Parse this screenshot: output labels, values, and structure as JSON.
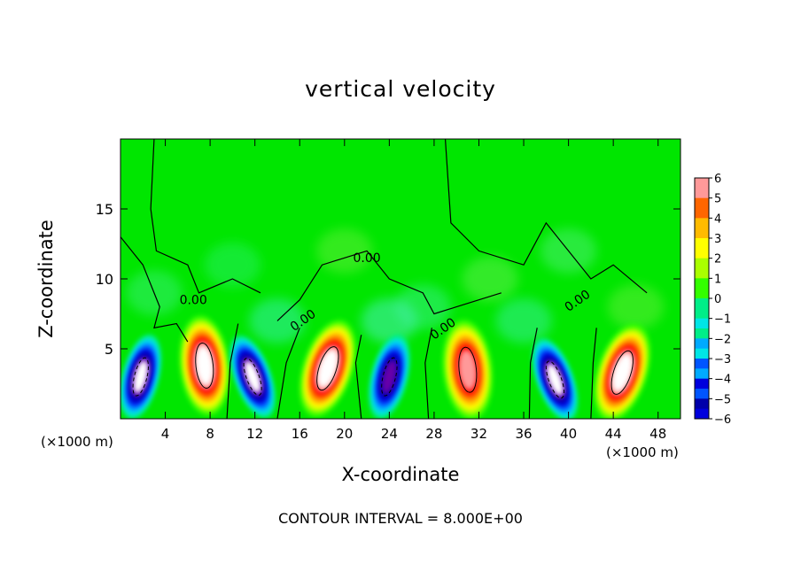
{
  "chart_data": {
    "type": "heatmap",
    "title": "vertical velocity",
    "xlabel": "X-coordinate",
    "ylabel": "Z-coordinate",
    "x_unit_label": "(×1000 m)",
    "x_range": [
      0,
      50
    ],
    "y_range": [
      0,
      20
    ],
    "x_ticks": [
      4,
      8,
      12,
      16,
      20,
      24,
      28,
      32,
      36,
      40,
      44,
      48
    ],
    "y_ticks": [
      5,
      10,
      15
    ],
    "colorbar": {
      "labels": [
        "6",
        "5",
        "4",
        "3",
        "2",
        "1",
        "0",
        "−1",
        "−2",
        "−3",
        "−4",
        "−5",
        "−6"
      ],
      "values": [
        6,
        5,
        4,
        3,
        2,
        1,
        0,
        -1,
        -2,
        -3,
        -4,
        -5,
        -6
      ]
    },
    "contour_labels": [
      "0.00",
      "0.00",
      "0.00",
      "0.00",
      "0.00"
    ],
    "footer": "CONTOUR INTERVAL = 8.000E+00",
    "colors": {
      "background": "#00e600",
      "neutral": "#00ff00",
      "positive": [
        "#33ff00",
        "#aaff00",
        "#ffff00",
        "#ffbb00",
        "#ff6600",
        "#ff0000",
        "#ff9999",
        "#ffffff"
      ],
      "negative": [
        "#00ee88",
        "#00e6e6",
        "#00aaff",
        "#0055ff",
        "#0000dd",
        "#0000aa",
        "#6600aa",
        "#ffffff"
      ]
    },
    "features": [
      {
        "kind": "updraft",
        "x": 7.5,
        "z": 3.8,
        "peak": 6
      },
      {
        "kind": "updraft",
        "x": 18.5,
        "z": 3.6,
        "peak": 6
      },
      {
        "kind": "updraft",
        "x": 31.0,
        "z": 3.5,
        "peak": 5
      },
      {
        "kind": "updraft",
        "x": 44.8,
        "z": 3.3,
        "peak": 6
      },
      {
        "kind": "downdraft",
        "x": 1.8,
        "z": 3.0,
        "peak": -6
      },
      {
        "kind": "downdraft",
        "x": 11.8,
        "z": 3.0,
        "peak": -6
      },
      {
        "kind": "downdraft",
        "x": 24.0,
        "z": 3.0,
        "peak": -5
      },
      {
        "kind": "downdraft",
        "x": 38.8,
        "z": 2.8,
        "peak": -6
      }
    ]
  }
}
